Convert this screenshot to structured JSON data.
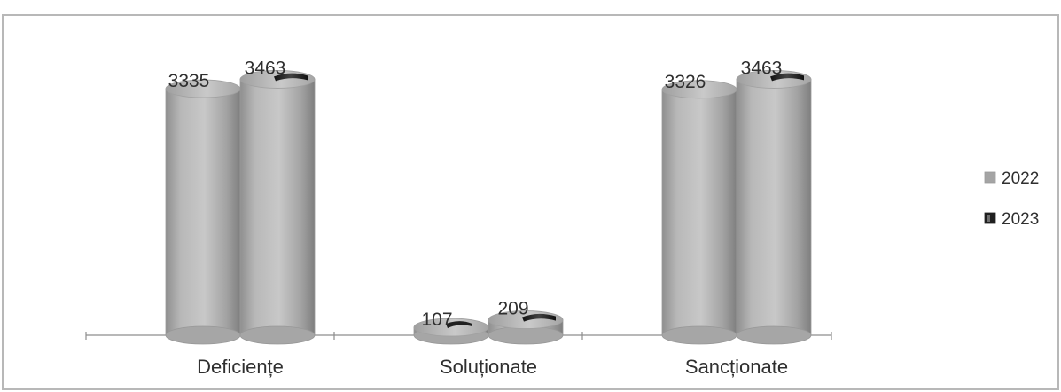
{
  "chart_data": {
    "type": "bar",
    "categories": [
      "Deficiențe",
      "Soluționate",
      "Sancționate"
    ],
    "series": [
      {
        "name": "2022",
        "values": [
          3335,
          107,
          3326
        ],
        "color": "#a7a7a7"
      },
      {
        "name": "2023",
        "values": [
          3463,
          209,
          3463
        ],
        "color": "#1f1f1f"
      }
    ],
    "title": "",
    "xlabel": "",
    "ylabel": "",
    "ylim": [
      0,
      3600
    ],
    "grid": false,
    "legend": "right",
    "style": "3d-cylinder"
  }
}
